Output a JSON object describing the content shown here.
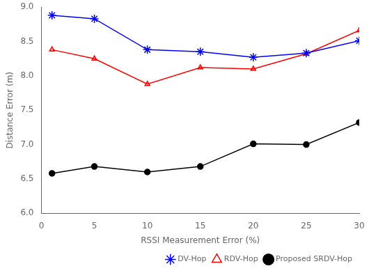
{
  "chart_data": {
    "type": "line",
    "x": [
      1,
      5,
      10,
      15,
      20,
      25,
      30
    ],
    "series": [
      {
        "name": "DV-Hop",
        "color": "#0000ff",
        "marker": "star",
        "values": [
          8.88,
          8.83,
          8.38,
          8.35,
          8.27,
          8.33,
          8.51
        ]
      },
      {
        "name": "RDV-Hop",
        "color": "#ff0000",
        "marker": "triangle",
        "values": [
          8.38,
          8.25,
          7.88,
          8.12,
          8.1,
          8.32,
          8.66
        ]
      },
      {
        "name": "Proposed SRDV-Hop",
        "color": "#000000",
        "marker": "circle",
        "values": [
          6.58,
          6.68,
          6.6,
          6.68,
          7.01,
          7.0,
          7.32
        ]
      }
    ],
    "xlabel": "RSSI Measurement Error (%)",
    "ylabel": "Distance Error (m)",
    "xlim": [
      0,
      30
    ],
    "ylim": [
      6,
      9
    ],
    "xticks": [
      0,
      5,
      10,
      15,
      20,
      25,
      30
    ],
    "yticks": [
      {
        "value": 6,
        "label": "6.0"
      },
      6.5,
      {
        "value": 7,
        "label": "7.0"
      },
      7.5,
      {
        "value": 8,
        "label": "8.0"
      },
      8.5,
      {
        "value": 9,
        "label": "9.0"
      }
    ],
    "grid": false,
    "legend": "lower right"
  }
}
